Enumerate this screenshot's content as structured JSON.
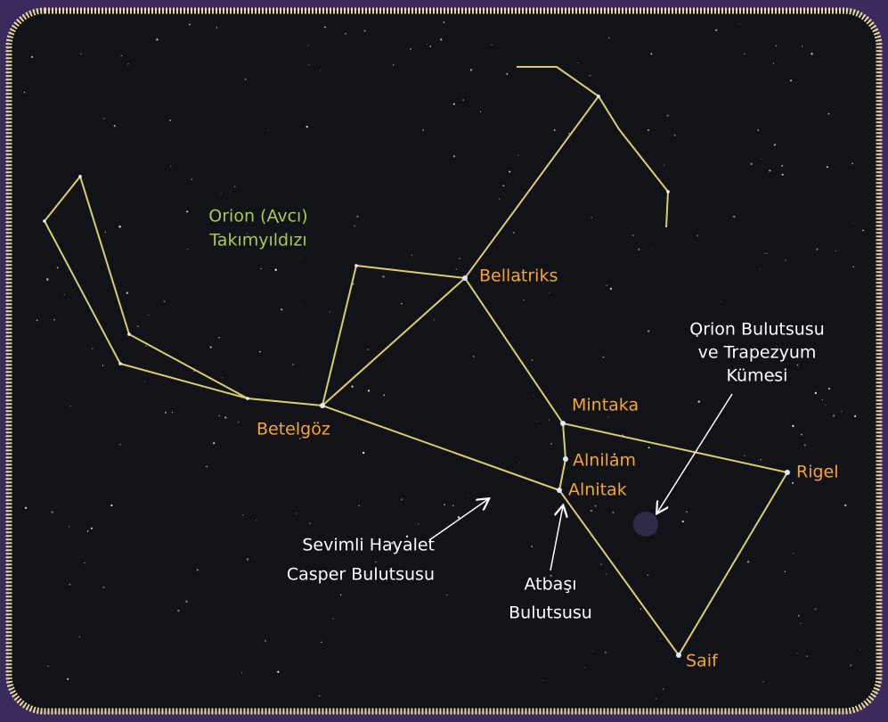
{
  "title": [
    "Orion (Avcı)",
    "Takımyıldızı"
  ],
  "stars": [
    {
      "label": "Bellatriks"
    },
    {
      "label": "Betelgöz"
    },
    {
      "label": "Mintaka"
    },
    {
      "label": "Alnilam"
    },
    {
      "label": "Alnitak"
    },
    {
      "label": "Rigel"
    },
    {
      "label": "Saif"
    }
  ],
  "nebulae": [
    {
      "label": [
        "Orion Bulutsusu",
        "ve Trapezyum",
        "Kümesi"
      ]
    },
    {
      "label": [
        "Sevimli Hayalet",
        "Casper Bulutsusu"
      ]
    },
    {
      "label": [
        "Atbaşı",
        "Bulutsusu"
      ]
    }
  ]
}
